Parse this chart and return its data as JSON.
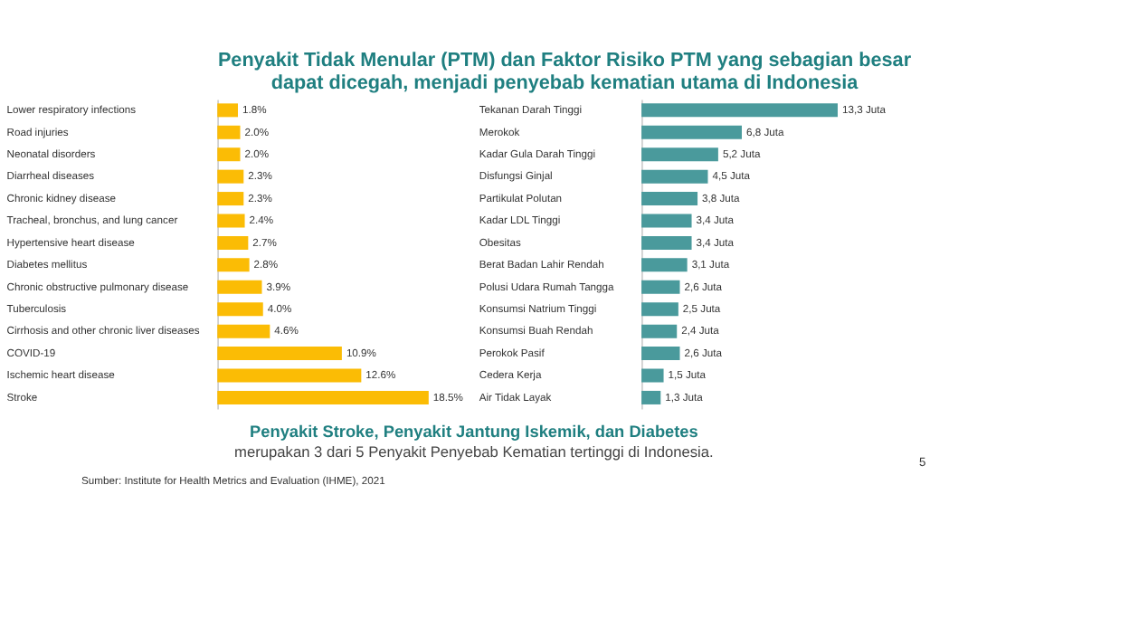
{
  "chart_data": [
    {
      "type": "bar",
      "orientation": "horizontal",
      "title": "Penyakit Tidak Menular (PTM) dan Faktor Risiko PTM yang sebagian besar dapat dicegah, menjadi penyebab kematian utama di Indonesia",
      "categories": [
        "Lower respiratory infections",
        "Road injuries",
        "Neonatal disorders",
        "Diarrheal diseases",
        "Chronic kidney disease",
        "Tracheal, bronchus, and lung cancer",
        "Hypertensive heart disease",
        "Diabetes mellitus",
        "Chronic obstructive pulmonary disease",
        "Tuberculosis",
        "Cirrhosis and other chronic liver diseases",
        "COVID-19",
        "Ischemic heart disease",
        "Stroke"
      ],
      "values": [
        1.8,
        2.0,
        2.0,
        2.3,
        2.3,
        2.4,
        2.7,
        2.8,
        3.9,
        4.0,
        4.6,
        10.9,
        12.6,
        18.5
      ],
      "value_labels": [
        "1.8%",
        "2.0%",
        "2.0%",
        "2.3%",
        "2.3%",
        "2.4%",
        "2.7%",
        "2.8%",
        "3.9%",
        "4.0%",
        "4.6%",
        "10.9%",
        "12.6%",
        "18.5%"
      ],
      "color": "#fbbc05",
      "annotations": [
        "Penyakit Stroke, Penyakit Jantung Iskemik, dan Diabetes",
        "merupakan 3 dari 5 Penyakit Penyebab Kematian tertinggi di Indonesia.",
        "Sumber:  Institute for Health Metrics and Evaluation (IHME), 2021",
        "5"
      ]
    },
    {
      "type": "bar",
      "orientation": "horizontal",
      "categories": [
        "Tekanan Darah Tinggi",
        "Merokok",
        "Kadar Gula Darah Tinggi",
        "Disfungsi Ginjal",
        "Partikulat Polutan",
        "Kadar LDL Tinggi",
        "Obesitas",
        "Berat Badan Lahir Rendah",
        "Polusi Udara Rumah Tangga",
        "Konsumsi Natrium Tinggi",
        "Konsumsi Buah Rendah",
        "Perokok Pasif",
        "Cedera Kerja",
        "Air Tidak Layak"
      ],
      "values": [
        13.3,
        6.8,
        5.2,
        4.5,
        3.8,
        3.4,
        3.4,
        3.1,
        2.6,
        2.5,
        2.4,
        2.6,
        1.5,
        1.3
      ],
      "value_labels": [
        "13,3 Juta",
        "6,8 Juta",
        "5,2 Juta",
        "4,5 Juta",
        "3,8 Juta",
        "3,4 Juta",
        "3,4 Juta",
        "3,1 Juta",
        "2,6 Juta",
        "2,5 Juta",
        "2,4 Juta",
        "2,6 Juta",
        "1,5 Juta",
        "1,3 Juta"
      ],
      "color": "#4a9a9c"
    }
  ]
}
